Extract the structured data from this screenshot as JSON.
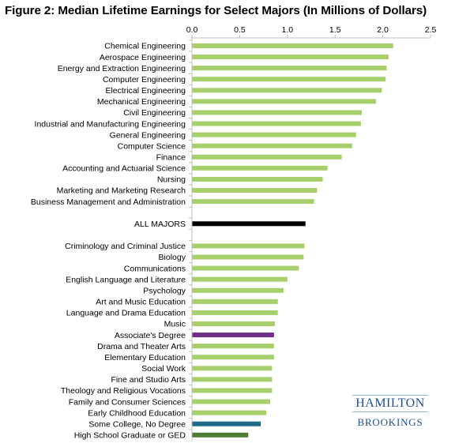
{
  "title": "Figure 2: Median Lifetime Earnings for Select Majors (In Millions of Dollars)",
  "logo": {
    "top": "HAMILTON",
    "bottom": "BROOKINGS"
  },
  "colors": {
    "default_bar": "#a7d06d",
    "all_majors": "#000000",
    "associates": "#6b2f86",
    "some_college": "#1d6a8a",
    "high_school": "#4f7c35",
    "axis": "#bfbfbf"
  },
  "chart_data": {
    "type": "bar",
    "orientation": "horizontal",
    "title": "Figure 2: Median Lifetime Earnings for Select Majors (In Millions of Dollars)",
    "xlim": [
      0,
      2.5
    ],
    "xticks": [
      "0.0",
      "0.5",
      "1.0",
      "1.5",
      "2.0",
      "2.5"
    ],
    "xtick_values": [
      0,
      0.5,
      1.0,
      1.5,
      2.0,
      2.5
    ],
    "axis_position": "top",
    "grid": false,
    "bars": [
      {
        "label": "Chemical Engineering",
        "value": 2.11,
        "color": "default_bar"
      },
      {
        "label": "Aerospace Engineering",
        "value": 2.06,
        "color": "default_bar"
      },
      {
        "label": "Energy and Extraction Engineering",
        "value": 2.04,
        "color": "default_bar"
      },
      {
        "label": "Computer Engineering",
        "value": 2.03,
        "color": "default_bar"
      },
      {
        "label": "Electrical Engineering",
        "value": 1.99,
        "color": "default_bar"
      },
      {
        "label": "Mechanical Engineering",
        "value": 1.93,
        "color": "default_bar"
      },
      {
        "label": "Civil Engineering",
        "value": 1.78,
        "color": "default_bar"
      },
      {
        "label": "Industrial and Manufacturing Engineering",
        "value": 1.77,
        "color": "default_bar"
      },
      {
        "label": "General Engineering",
        "value": 1.72,
        "color": "default_bar"
      },
      {
        "label": "Computer Science",
        "value": 1.68,
        "color": "default_bar"
      },
      {
        "label": "Finance",
        "value": 1.57,
        "color": "default_bar"
      },
      {
        "label": "Accounting and Actuarial Science",
        "value": 1.42,
        "color": "default_bar"
      },
      {
        "label": "Nursing",
        "value": 1.37,
        "color": "default_bar"
      },
      {
        "label": "Marketing and Marketing Research",
        "value": 1.31,
        "color": "default_bar"
      },
      {
        "label": "Business Management and Administration",
        "value": 1.28,
        "color": "default_bar"
      },
      {
        "label": "",
        "value": null,
        "color": "default_bar"
      },
      {
        "label": "ALL MAJORS",
        "value": 1.19,
        "color": "all_majors"
      },
      {
        "label": "",
        "value": null,
        "color": "default_bar"
      },
      {
        "label": "Criminology and Criminal Justice",
        "value": 1.18,
        "color": "default_bar"
      },
      {
        "label": "Biology",
        "value": 1.17,
        "color": "default_bar"
      },
      {
        "label": "Communications",
        "value": 1.12,
        "color": "default_bar"
      },
      {
        "label": "English Language and Literature",
        "value": 1.0,
        "color": "default_bar"
      },
      {
        "label": "Psychology",
        "value": 0.96,
        "color": "default_bar"
      },
      {
        "label": "Art and Music Education",
        "value": 0.9,
        "color": "default_bar"
      },
      {
        "label": "Language and Drama Education",
        "value": 0.9,
        "color": "default_bar"
      },
      {
        "label": "Music",
        "value": 0.87,
        "color": "default_bar"
      },
      {
        "label": "Associate's Degree",
        "value": 0.86,
        "color": "associates"
      },
      {
        "label": "Drama and Theater Arts",
        "value": 0.86,
        "color": "default_bar"
      },
      {
        "label": "Elementary Education",
        "value": 0.86,
        "color": "default_bar"
      },
      {
        "label": "Social Work",
        "value": 0.84,
        "color": "default_bar"
      },
      {
        "label": "Fine and Studio Arts",
        "value": 0.84,
        "color": "default_bar"
      },
      {
        "label": "Theology and Religious Vocations",
        "value": 0.84,
        "color": "default_bar"
      },
      {
        "label": "Family and Consumer Sciences",
        "value": 0.82,
        "color": "default_bar"
      },
      {
        "label": "Early Childhood Education",
        "value": 0.78,
        "color": "default_bar"
      },
      {
        "label": "Some College, No Degree",
        "value": 0.72,
        "color": "some_college"
      },
      {
        "label": "High School Graduate or GED",
        "value": 0.59,
        "color": "high_school"
      }
    ]
  }
}
